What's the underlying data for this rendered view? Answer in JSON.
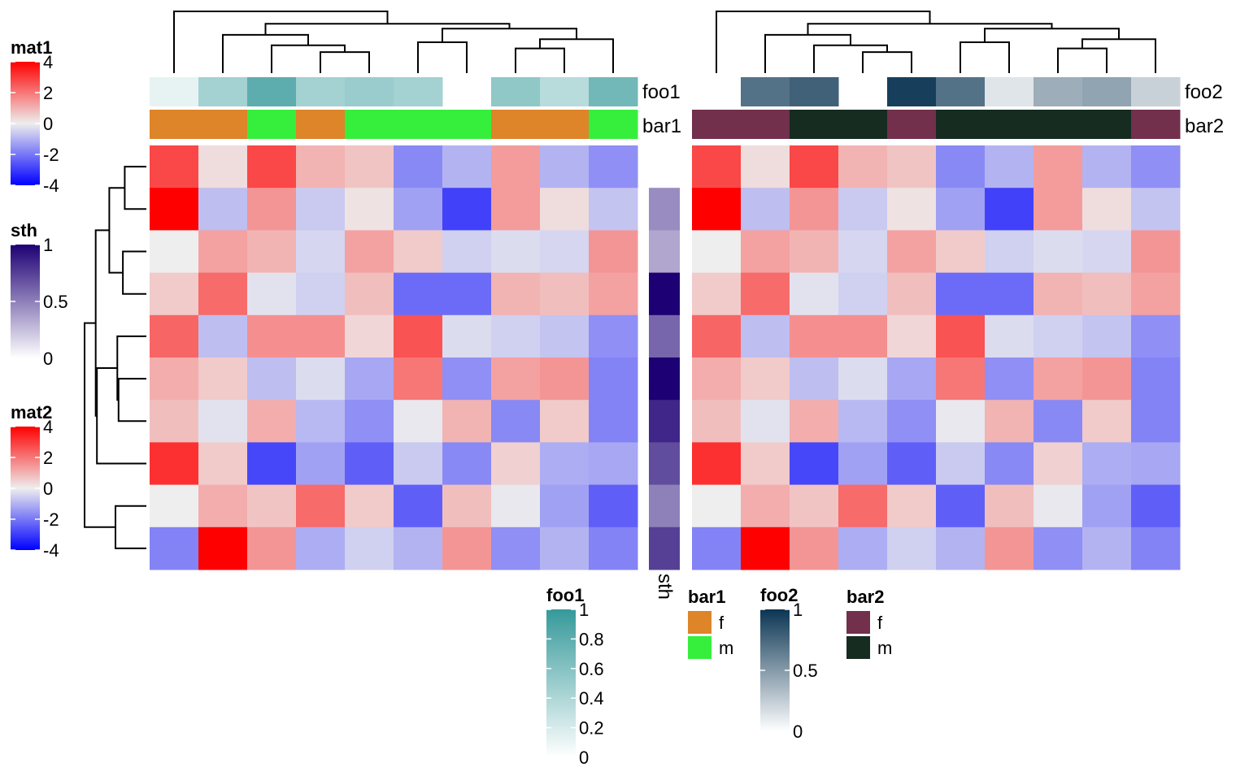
{
  "chart_data": {
    "type": "heatmap",
    "title": "",
    "row_order_note": "rows listed top to bottom as displayed; columns left to right as displayed",
    "heatmaps": [
      {
        "name": "mat1",
        "values": [
          [
            2.8,
            0.3,
            2.8,
            1.0,
            0.7,
            -1.7,
            -1.0,
            1.4,
            -1.0,
            -1.6
          ],
          [
            4.0,
            -0.8,
            1.5,
            -0.6,
            0.2,
            -1.3,
            -2.9,
            1.4,
            0.3,
            -0.7
          ],
          [
            0.0,
            1.3,
            1.0,
            -0.4,
            1.3,
            0.6,
            -0.5,
            -0.3,
            -0.4,
            1.5
          ],
          [
            0.6,
            2.2,
            -0.2,
            -0.5,
            0.8,
            -2.2,
            -2.2,
            1.0,
            0.8,
            1.3
          ],
          [
            2.3,
            -0.8,
            1.6,
            1.6,
            0.4,
            2.6,
            -0.3,
            -0.5,
            -0.7,
            -1.6
          ],
          [
            1.1,
            0.6,
            -0.8,
            -0.3,
            -1.2,
            2.0,
            -1.6,
            1.3,
            1.5,
            -1.8
          ],
          [
            0.8,
            -0.2,
            1.1,
            -0.9,
            -1.6,
            -0.1,
            1.0,
            -1.7,
            0.6,
            -1.8
          ],
          [
            3.2,
            0.6,
            -2.8,
            -1.3,
            -2.4,
            -0.6,
            -1.7,
            0.5,
            -1.1,
            -1.2
          ],
          [
            0.0,
            1.1,
            0.7,
            2.2,
            0.6,
            -2.4,
            0.8,
            -0.1,
            -1.3,
            -2.4
          ],
          [
            -1.8,
            4.0,
            1.5,
            -1.1,
            -0.5,
            -1.0,
            1.5,
            -1.6,
            -1.0,
            -1.8
          ]
        ],
        "top_annotations": {
          "foo1": [
            0.12,
            0.45,
            0.8,
            0.45,
            0.5,
            0.45,
            null,
            0.55,
            0.35,
            0.7
          ],
          "bar1": [
            "f",
            "f",
            "m",
            "f",
            "m",
            "m",
            "m",
            "f",
            "f",
            "m"
          ]
        }
      },
      {
        "name": "mat2",
        "values": [
          [
            2.8,
            0.3,
            2.8,
            1.0,
            0.7,
            -1.7,
            -1.0,
            1.4,
            -1.0,
            -1.6
          ],
          [
            4.0,
            -0.8,
            1.5,
            -0.6,
            0.2,
            -1.3,
            -2.9,
            1.4,
            0.3,
            -0.7
          ],
          [
            0.0,
            1.3,
            1.0,
            -0.4,
            1.3,
            0.6,
            -0.5,
            -0.3,
            -0.4,
            1.5
          ],
          [
            0.6,
            2.2,
            -0.2,
            -0.5,
            0.8,
            -2.2,
            -2.2,
            1.0,
            0.8,
            1.3
          ],
          [
            2.3,
            -0.8,
            1.6,
            1.6,
            0.4,
            2.6,
            -0.3,
            -0.5,
            -0.7,
            -1.6
          ],
          [
            1.1,
            0.6,
            -0.8,
            -0.3,
            -1.2,
            2.0,
            -1.6,
            1.3,
            1.5,
            -1.8
          ],
          [
            0.8,
            -0.2,
            1.1,
            -0.9,
            -1.6,
            -0.1,
            1.0,
            -1.7,
            0.6,
            -1.8
          ],
          [
            3.2,
            0.6,
            -2.8,
            -1.3,
            -2.4,
            -0.6,
            -1.7,
            0.5,
            -1.1,
            -1.2
          ],
          [
            0.0,
            1.1,
            0.7,
            2.2,
            0.6,
            -2.4,
            0.8,
            -0.1,
            -1.3,
            -2.4
          ],
          [
            -1.8,
            4.0,
            1.5,
            -1.1,
            -0.5,
            -1.0,
            1.5,
            -1.6,
            -1.0,
            -1.8
          ]
        ],
        "top_annotations": {
          "foo2": [
            null,
            0.7,
            0.78,
            null,
            0.95,
            0.7,
            0.13,
            0.4,
            0.45,
            0.23
          ],
          "bar2": [
            "f",
            "f",
            "m",
            "m",
            "f",
            "m",
            "m",
            "m",
            "m",
            "f"
          ]
        }
      }
    ],
    "row_annotation": {
      "name": "sth",
      "values": [
        null,
        0.45,
        0.35,
        1.0,
        0.6,
        1.0,
        0.85,
        0.7,
        0.5,
        0.75
      ]
    },
    "annotation_labels": {
      "foo1": "foo1",
      "bar1": "bar1",
      "foo2": "foo2",
      "bar2": "bar2",
      "sth": "sth"
    },
    "row_dendrogram": {
      "merges": [
        [
          0,
          1,
          0.35
        ],
        [
          2,
          3,
          0.38
        ],
        [
          "a",
          "b",
          0.6
        ],
        [
          5,
          6,
          0.45
        ],
        [
          4,
          "d",
          0.47
        ],
        [
          "e",
          7,
          0.8
        ],
        [
          "c",
          "f",
          0.82
        ],
        [
          8,
          9,
          0.5
        ],
        [
          "g",
          "h",
          1.0
        ]
      ]
    },
    "column_dendrogram": {
      "merges": [
        [
          3,
          4,
          0.34
        ],
        [
          2,
          "a",
          0.45
        ],
        [
          1,
          "b",
          0.62
        ],
        [
          5,
          6,
          0.5
        ],
        [
          7,
          8,
          0.4
        ],
        [
          "e",
          9,
          0.55
        ],
        [
          "d",
          "f",
          0.72
        ],
        [
          "c",
          "g",
          0.8
        ],
        [
          0,
          "h",
          1.0
        ]
      ]
    },
    "legends": [
      {
        "title": "mat1",
        "type": "continuous",
        "ticks": [
          "4",
          "2",
          "0",
          "-2",
          "-4"
        ],
        "range": [
          -4,
          4
        ],
        "colors": [
          "#0000FF",
          "#EEEEEE",
          "#FF0000"
        ]
      },
      {
        "title": "sth",
        "type": "continuous",
        "ticks": [
          "1",
          "0.5",
          "0"
        ],
        "range": [
          0,
          1
        ],
        "colors": [
          "#FFFFFF",
          "#1D0073"
        ]
      },
      {
        "title": "mat2",
        "type": "continuous",
        "ticks": [
          "4",
          "2",
          "0",
          "-2",
          "-4"
        ],
        "range": [
          -4,
          4
        ],
        "colors": [
          "#0000FF",
          "#EEEEEE",
          "#FF0000"
        ]
      },
      {
        "title": "foo1",
        "type": "continuous",
        "ticks": [
          "1",
          "0.8",
          "0.6",
          "0.4",
          "0.2",
          "0"
        ],
        "range": [
          0,
          1
        ],
        "colors": [
          "#FFFFFF",
          "#35999A"
        ]
      },
      {
        "title": "bar1",
        "type": "discrete",
        "levels": [
          "f",
          "m"
        ],
        "colors": [
          "#DE8429",
          "#36EF3C"
        ]
      },
      {
        "title": "foo2",
        "type": "continuous",
        "ticks": [
          "1",
          "0.5",
          "0"
        ],
        "range": [
          0,
          1
        ],
        "colors": [
          "#FFFFFF",
          "#0B3553"
        ]
      },
      {
        "title": "bar2",
        "type": "discrete",
        "levels": [
          "f",
          "m"
        ],
        "colors": [
          "#72304D",
          "#162C21"
        ]
      }
    ]
  }
}
